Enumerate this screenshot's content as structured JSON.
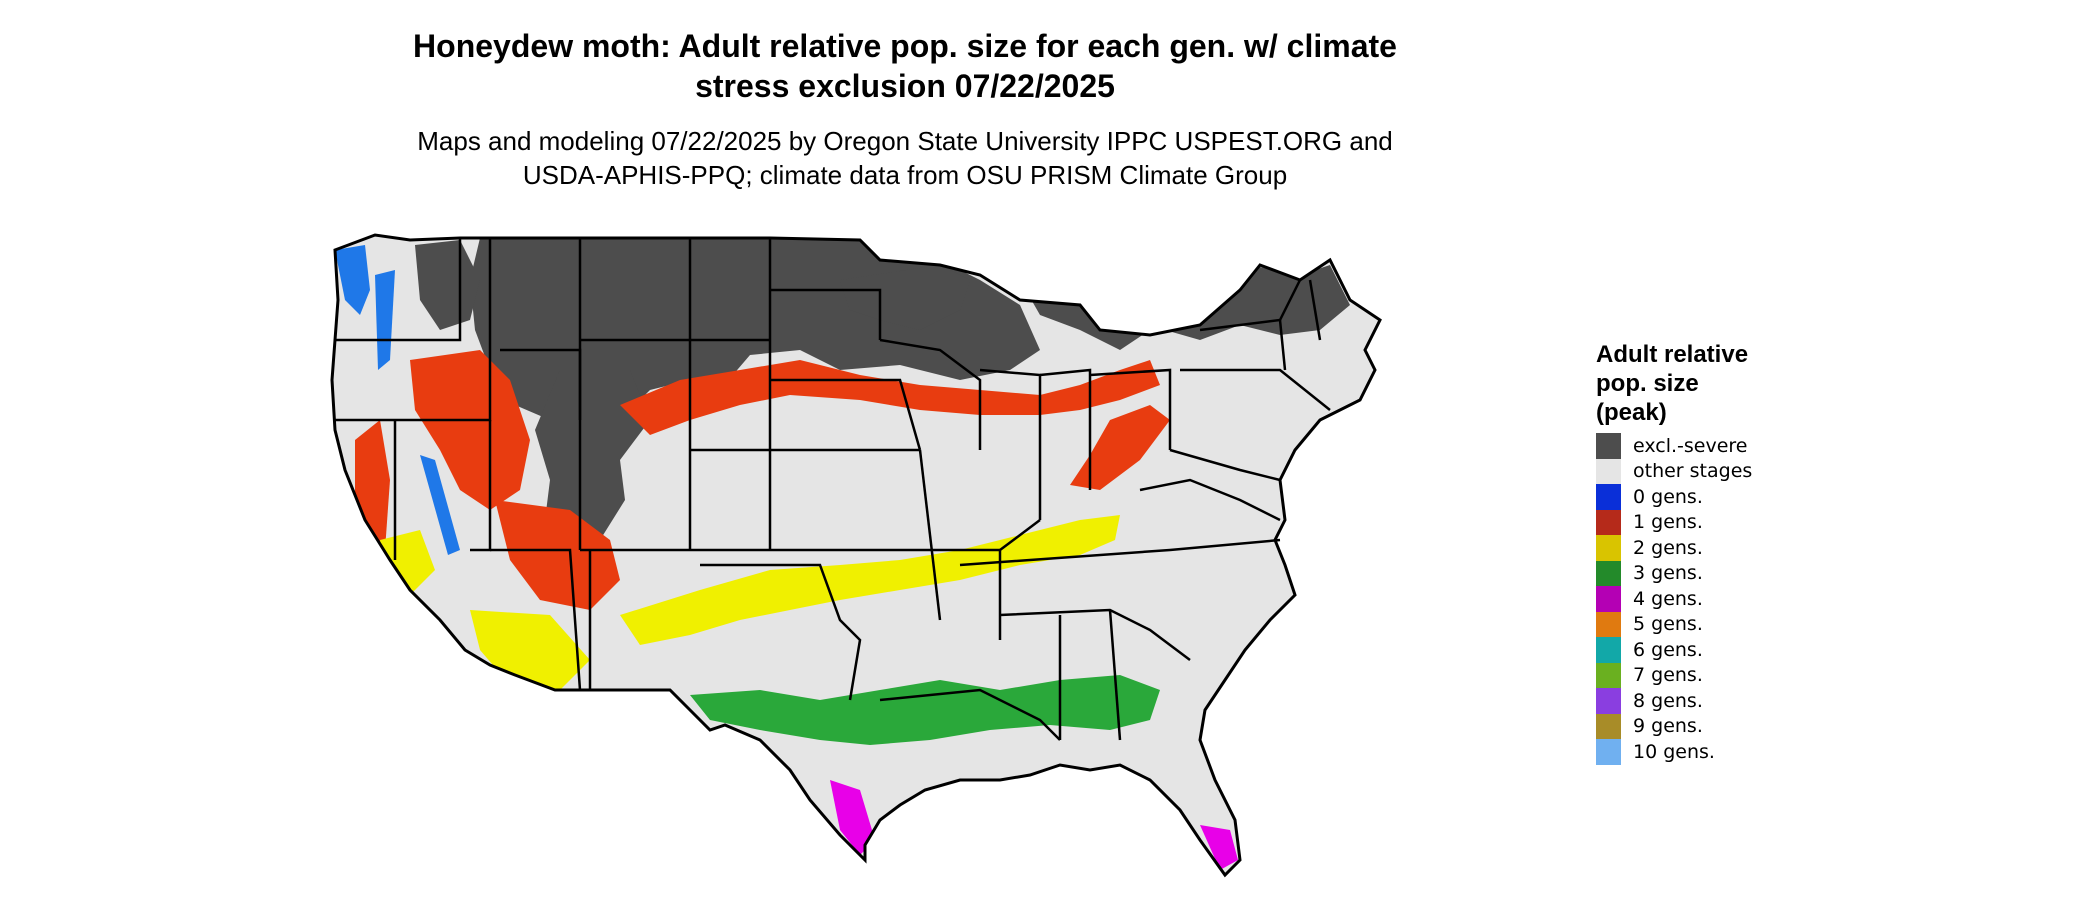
{
  "title": {
    "line1": "Honeydew moth: Adult relative pop. size for each gen. w/ climate",
    "line2": "stress exclusion 07/22/2025"
  },
  "subtitle": {
    "line1": "Maps and modeling 07/22/2025 by Oregon State University IPPC USPEST.ORG and",
    "line2": "USDA-APHIS-PPQ; climate data from OSU PRISM Climate Group"
  },
  "legend": {
    "title_line1": "Adult relative",
    "title_line2": "pop. size",
    "title_line3": "(peak)",
    "items": [
      {
        "label": "excl.-severe",
        "color": "#4d4d4d"
      },
      {
        "label": "other stages",
        "color": "#e5e5e5"
      },
      {
        "label": "0 gens.",
        "color": "#0a2fd8"
      },
      {
        "label": "1 gens.",
        "color": "#b52a1a"
      },
      {
        "label": "2 gens.",
        "color": "#d9c400"
      },
      {
        "label": "3 gens.",
        "color": "#238a2a"
      },
      {
        "label": "4 gens.",
        "color": "#b400b4"
      },
      {
        "label": "5 gens.",
        "color": "#e07a10"
      },
      {
        "label": "6 gens.",
        "color": "#12a8a8"
      },
      {
        "label": "7 gens.",
        "color": "#6ab020"
      },
      {
        "label": "8 gens.",
        "color": "#8a3ee0"
      },
      {
        "label": "9 gens.",
        "color": "#a88c28"
      },
      {
        "label": "10 gens.",
        "color": "#70b0f0"
      }
    ]
  },
  "map_colors": {
    "background": "#e5e5e5",
    "excluded": "#4d4d4d",
    "one_gen": "#e83c10",
    "two_gen": "#f0f000",
    "three_gen": "#2aa83a",
    "four_gen": "#e800e8",
    "blue": "#1f78e8",
    "border": "#000000"
  }
}
